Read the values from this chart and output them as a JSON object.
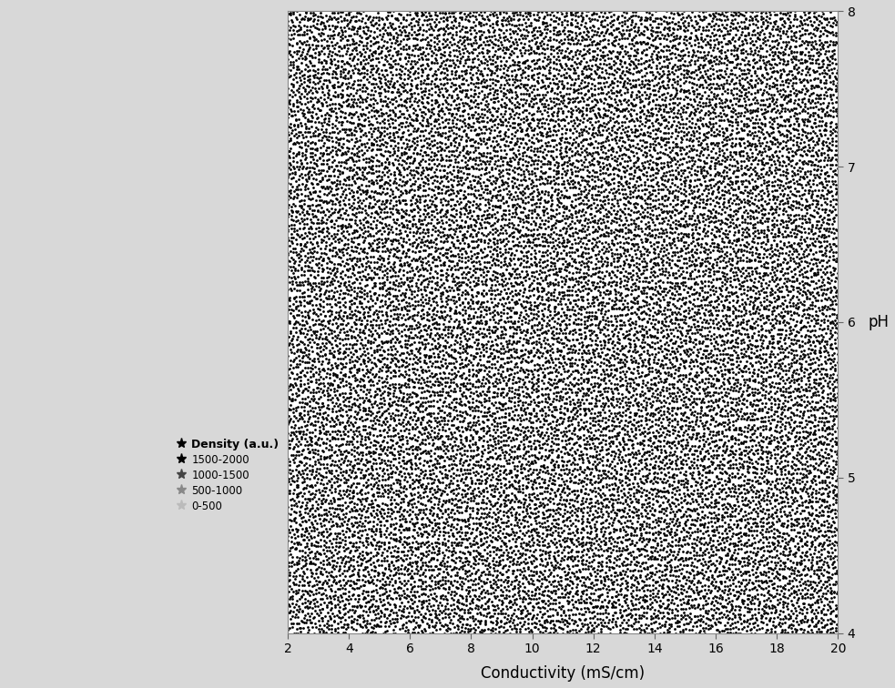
{
  "title": "",
  "xlabel": "Conductivity (mS/cm)",
  "ylabel": "pH",
  "x_ticks": [
    2,
    4,
    6,
    8,
    10,
    12,
    14,
    16,
    18,
    20
  ],
  "y_ticks": [
    4,
    5,
    6,
    7,
    8
  ],
  "xlim": [
    2,
    20
  ],
  "ylim": [
    4,
    8
  ],
  "legend_title": "Density (a.u.)",
  "legend_labels": [
    "1500-2000",
    "1000-1500",
    "500-1000",
    "0-500"
  ],
  "legend_marker_colors": [
    "#000000",
    "#444444",
    "#888888",
    "#bbbbbb"
  ],
  "bg_color": "#d8d8d8",
  "plot_bg_color": "#ffffff",
  "dot_color": "#000000",
  "dot_size": 4.0,
  "dot_alpha": 1.0,
  "n_points": 60000,
  "seed": 42,
  "figsize": [
    9.83,
    7.56
  ],
  "dpi": 100,
  "left_margin_color": "#d8d8d8",
  "tick_fontsize": 10,
  "label_fontsize": 12
}
